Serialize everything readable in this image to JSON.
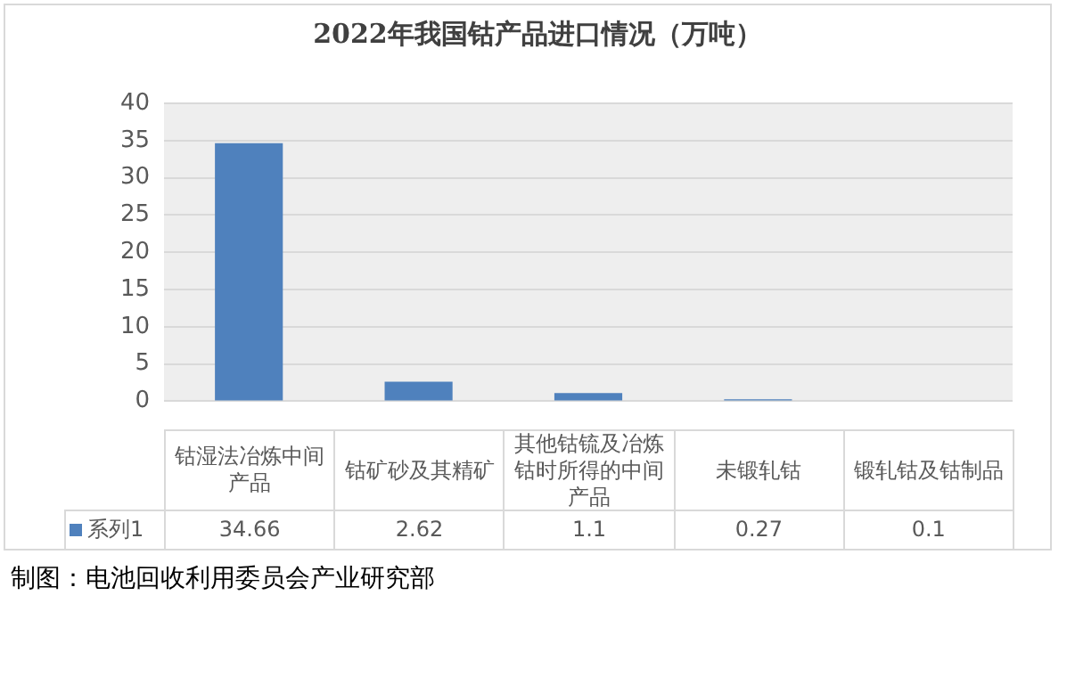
{
  "chart_data": {
    "type": "bar",
    "title": "2022年我国钴产品进口情况（万吨）",
    "categories": [
      "钴湿法冶炼中间产品",
      "钴矿砂及其精矿",
      "其他钴锍及冶炼钴时所得的中间产品",
      "未锻轧钴",
      "锻轧钴及钴制品"
    ],
    "series": [
      {
        "name": "系列1",
        "color": "#4f81bd",
        "values": [
          34.66,
          2.62,
          1.1,
          0.27,
          0.1
        ]
      }
    ],
    "ylim": [
      0,
      40
    ],
    "yticks": [
      0,
      5,
      10,
      15,
      20,
      25,
      30,
      35,
      40
    ],
    "grid": "y",
    "data_labels": true,
    "legend": "bottom",
    "annotations": [
      "制图：电池回收利用委员会产业研究部"
    ]
  }
}
